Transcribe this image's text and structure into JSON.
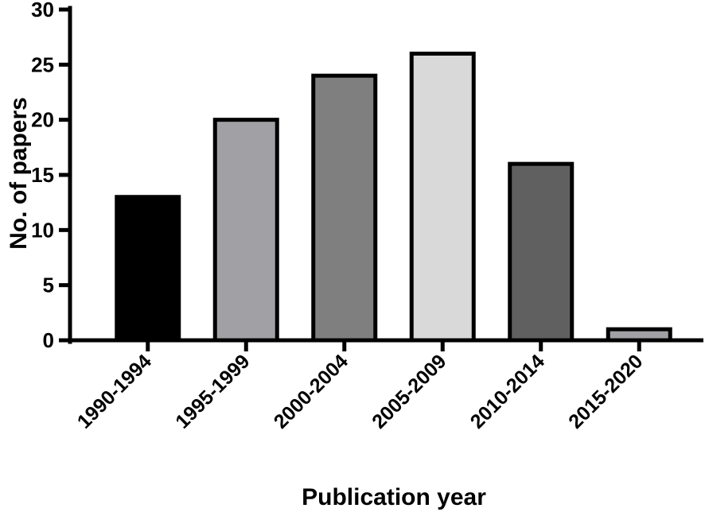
{
  "chart_data": {
    "type": "bar",
    "title": "",
    "xlabel": "Publication year",
    "ylabel": "No. of papers",
    "ylim": [
      0,
      30
    ],
    "yticks": [
      0,
      5,
      10,
      15,
      20,
      25,
      30
    ],
    "grid": false,
    "legend": "none",
    "categories": [
      "1990-1994",
      "1995-1999",
      "2000-2004",
      "2005-2009",
      "2010-2014",
      "2015-2020"
    ],
    "values": [
      13,
      20,
      24,
      26,
      16,
      1
    ],
    "bar_colors": [
      "#000000",
      "#a1a1a5",
      "#7f7f7f",
      "#d9d9d9",
      "#606060",
      "#a1a1a5"
    ],
    "edge_color": "#000000"
  }
}
